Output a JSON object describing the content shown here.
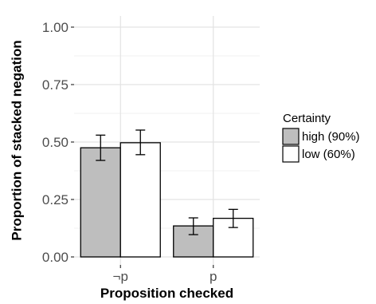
{
  "chart_data": {
    "type": "bar",
    "title": "",
    "xlabel": "Proposition checked",
    "ylabel": "Proportion of stacked negation",
    "categories": [
      "¬p",
      "p"
    ],
    "ylim": [
      0,
      1
    ],
    "yticks": [
      "0.00",
      "0.25",
      "0.50",
      "0.75",
      "1.00"
    ],
    "grid": true,
    "legend": {
      "title": "Certainty",
      "position": "right"
    },
    "series": [
      {
        "name": "high (90%)",
        "color": "#bebebe",
        "values": [
          0.475,
          0.135
        ],
        "error_low": [
          0.42,
          0.097
        ],
        "error_high": [
          0.53,
          0.17
        ]
      },
      {
        "name": "low (60%)",
        "color": "#ffffff",
        "values": [
          0.497,
          0.168
        ],
        "error_low": [
          0.445,
          0.128
        ],
        "error_high": [
          0.552,
          0.207
        ]
      }
    ]
  }
}
